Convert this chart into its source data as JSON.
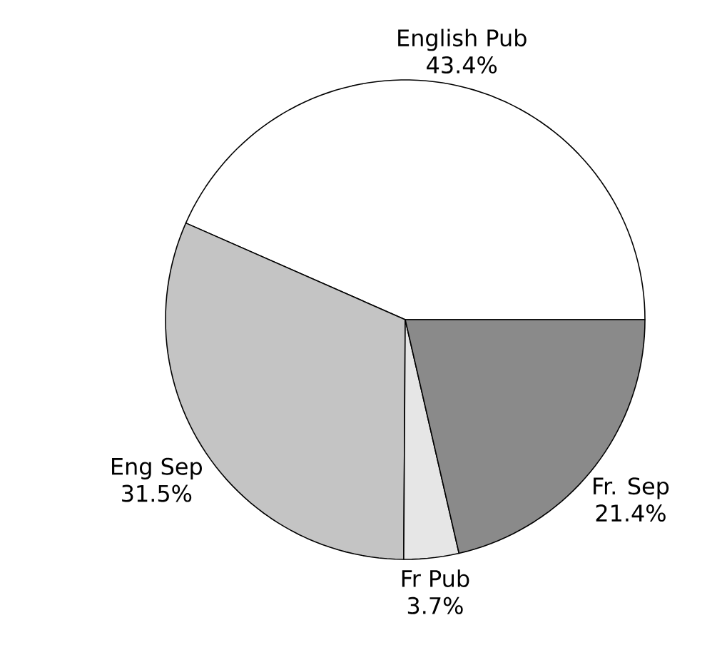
{
  "chart_data": {
    "type": "pie",
    "categories": [
      "English Pub",
      "Eng Sep",
      "Fr Pub",
      "Fr. Sep"
    ],
    "values": [
      43.4,
      31.5,
      3.7,
      21.4
    ],
    "value_labels": [
      "43.4%",
      "31.5%",
      "3.7%",
      "21.4%"
    ],
    "colors": [
      "#ffffff",
      "#c4c4c4",
      "#e6e6e6",
      "#8a8a8a"
    ]
  }
}
